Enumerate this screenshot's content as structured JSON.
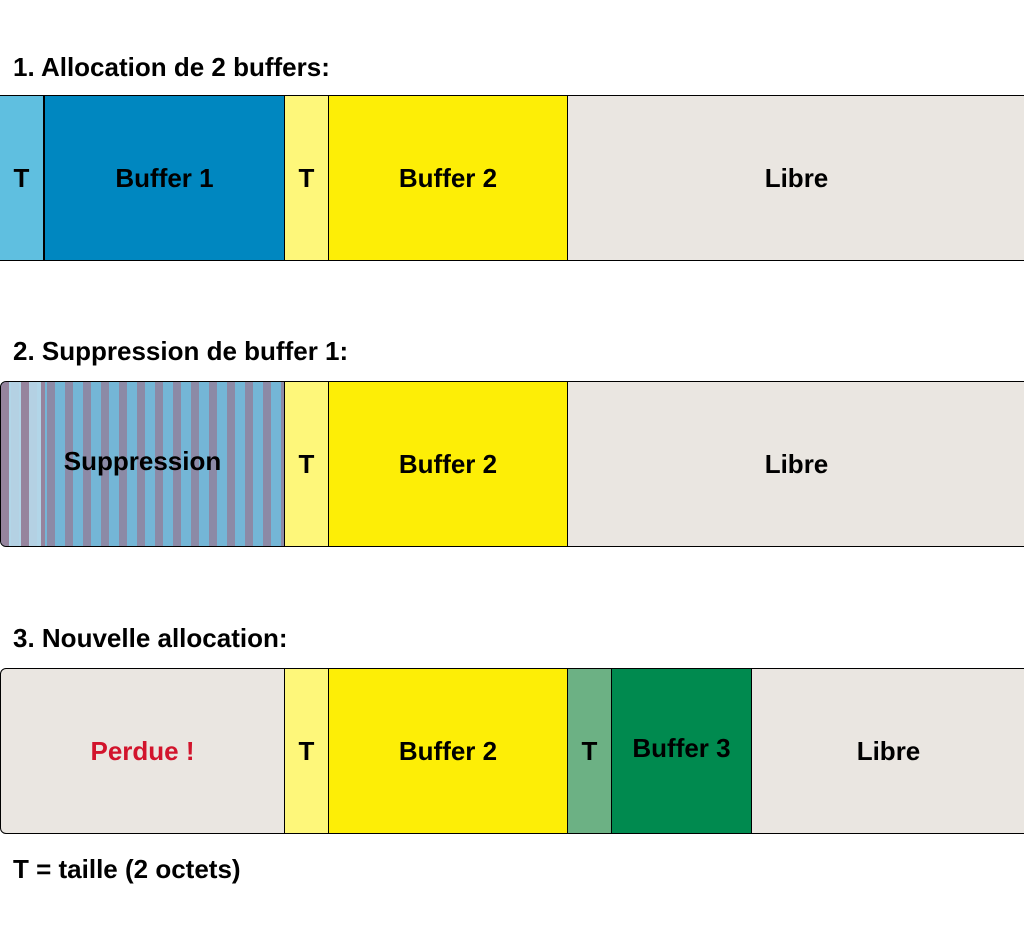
{
  "headings": {
    "step1": "1. Allocation de 2 buffers:",
    "step2": "2. Suppression de buffer 1:",
    "step3": "3. Nouvelle allocation:"
  },
  "legend": "T = taille (2 octets)",
  "colors": {
    "header1": "#5fbfe0",
    "buffer1": "#0087c0",
    "header2": "#fef77a",
    "buffer2": "#fdee06",
    "free": "#eae6e1",
    "header3": "#6cb184",
    "buffer3": "#008a4f",
    "lost_text": "#d2142c"
  },
  "rows": {
    "step1": {
      "t1": "T",
      "buffer1": "Buffer 1",
      "t2": "T",
      "buffer2": "Buffer 2",
      "free": "Libre"
    },
    "step2": {
      "deleted": "Suppression",
      "t2": "T",
      "buffer2": "Buffer 2",
      "free": "Libre"
    },
    "step3": {
      "lost": "Perdue !",
      "t2": "T",
      "buffer2": "Buffer 2",
      "t3": "T",
      "buffer3": "Buffer 3",
      "free": "Libre"
    }
  }
}
